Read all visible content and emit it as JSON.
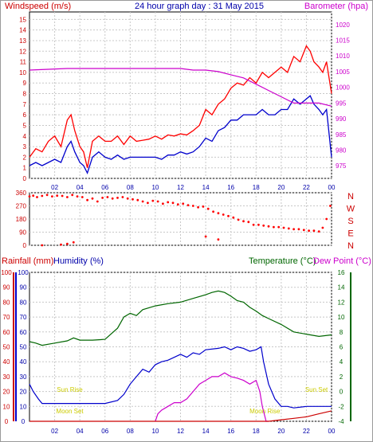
{
  "chart_data": [
    {
      "type": "line",
      "title": "24 hour graph day : 31 May 2015",
      "left_label": "Windspeed (m/s)",
      "right_label": "Barometer (hpa)",
      "x_ticks": [
        "02",
        "04",
        "06",
        "08",
        "10",
        "12",
        "14",
        "16",
        "18",
        "20",
        "22",
        "00"
      ],
      "y_left_ticks": [
        0,
        1,
        2,
        3,
        4,
        5,
        6,
        7,
        8,
        9,
        10,
        11,
        12,
        13,
        14,
        15
      ],
      "y_left_range": [
        0,
        15.7
      ],
      "y_right_ticks": [
        975,
        980,
        985,
        990,
        995,
        1000,
        1005,
        1010,
        1015,
        1020
      ],
      "y_right_range": [
        971,
        1024
      ],
      "colors": {
        "gust": "#ff0000",
        "average": "#0000cc",
        "pressure": "#cc00cc"
      },
      "series": [
        {
          "key": "gust",
          "x": [
            0,
            0.5,
            1,
            1.5,
            2,
            2.5,
            3,
            3.3,
            3.6,
            4,
            4.3,
            4.6,
            5,
            5.5,
            6,
            6.5,
            7,
            7.5,
            8,
            8.5,
            9,
            9.5,
            10,
            10.5,
            11,
            11.5,
            12,
            12.5,
            13,
            13.5,
            14,
            14.5,
            15,
            15.5,
            16,
            16.5,
            17,
            17.5,
            18,
            18.5,
            19,
            19.5,
            20,
            20.5,
            21,
            21.5,
            22,
            22.3,
            22.6,
            23,
            23.3,
            23.6,
            24
          ],
          "y": [
            2.0,
            2.8,
            2.5,
            3.5,
            4.0,
            3.0,
            5.5,
            6.0,
            4.5,
            3.0,
            2.5,
            1.0,
            3.5,
            4.0,
            3.5,
            3.5,
            4.0,
            3.2,
            4.0,
            3.5,
            3.6,
            3.7,
            4.0,
            3.7,
            4.1,
            4.0,
            4.2,
            4.1,
            4.5,
            5.0,
            6.5,
            6.0,
            7.0,
            7.5,
            8.5,
            9.0,
            8.8,
            9.5,
            9.0,
            10.0,
            9.5,
            10.0,
            10.5,
            10.0,
            11.5,
            11.0,
            12.5,
            12.0,
            11.0,
            10.5,
            10.0,
            11.0,
            8.0
          ]
        },
        {
          "key": "average",
          "x": [
            0,
            0.5,
            1,
            1.5,
            2,
            2.5,
            3,
            3.3,
            3.6,
            4,
            4.3,
            4.6,
            5,
            5.5,
            6,
            6.5,
            7,
            7.5,
            8,
            8.5,
            9,
            9.5,
            10,
            10.5,
            11,
            11.5,
            12,
            12.5,
            13,
            13.5,
            14,
            14.5,
            15,
            15.5,
            16,
            16.5,
            17,
            17.5,
            18,
            18.5,
            19,
            19.5,
            20,
            20.5,
            21,
            21.5,
            22,
            22.3,
            22.6,
            23,
            23.3,
            23.6,
            24
          ],
          "y": [
            1.2,
            1.5,
            1.2,
            1.5,
            1.8,
            1.5,
            3.0,
            3.5,
            2.5,
            1.5,
            1.2,
            0.5,
            2.0,
            2.5,
            2.0,
            1.8,
            2.2,
            1.8,
            2.0,
            2.0,
            2.0,
            2.0,
            2.0,
            1.8,
            2.2,
            2.2,
            2.5,
            2.3,
            2.5,
            3.0,
            3.8,
            3.5,
            4.5,
            4.8,
            5.5,
            5.5,
            6.0,
            6.0,
            6.0,
            6.5,
            6.0,
            6.0,
            6.5,
            6.5,
            7.5,
            7.0,
            7.5,
            7.8,
            7.0,
            6.5,
            6.0,
            6.5,
            2.0
          ]
        },
        {
          "key": "pressure",
          "x": [
            0,
            3,
            6,
            9,
            12,
            13,
            14,
            15,
            16,
            17,
            18,
            19,
            20,
            21,
            22,
            23,
            24
          ],
          "y": [
            1005.5,
            1006,
            1006,
            1006,
            1006,
            1005.5,
            1005.5,
            1005,
            1004,
            1003,
            1001,
            999,
            997,
            995,
            995,
            995,
            994
          ]
        }
      ]
    },
    {
      "type": "scatter",
      "x_ticks": [
        "02",
        "04",
        "06",
        "08",
        "10",
        "12",
        "14",
        "16",
        "18",
        "20",
        "22",
        "00"
      ],
      "y_left_ticks": [
        0,
        90,
        180,
        270,
        360
      ],
      "y_range": [
        0,
        360
      ],
      "compass_labels": [
        "N",
        "W",
        "S",
        "E",
        "N"
      ],
      "color": "#ff0000",
      "points_x": [
        0,
        0.3,
        0.6,
        1,
        1.4,
        1.8,
        2.2,
        2.6,
        3,
        3.4,
        3.8,
        4.2,
        4.6,
        5,
        5.4,
        5.8,
        6.2,
        6.6,
        7,
        7.4,
        7.8,
        8.2,
        8.6,
        9,
        9.4,
        9.8,
        10.2,
        10.6,
        11,
        11.4,
        11.8,
        12.2,
        12.6,
        13,
        13.4,
        13.8,
        14.2,
        14.6,
        15,
        15.4,
        15.8,
        16.2,
        16.6,
        17,
        17.4,
        17.8,
        18.2,
        18.6,
        19,
        19.4,
        19.8,
        20.2,
        20.6,
        21,
        21.4,
        21.8,
        22.2,
        22.6,
        23,
        23.3,
        23.6,
        23.9,
        1,
        2.5,
        3,
        3.5,
        14,
        15
      ],
      "points_y": [
        335,
        340,
        330,
        338,
        345,
        335,
        340,
        338,
        330,
        345,
        335,
        330,
        310,
        320,
        300,
        325,
        330,
        320,
        325,
        330,
        320,
        315,
        310,
        300,
        290,
        305,
        300,
        285,
        295,
        290,
        280,
        285,
        275,
        270,
        260,
        265,
        250,
        230,
        220,
        210,
        200,
        190,
        175,
        165,
        160,
        140,
        140,
        135,
        130,
        125,
        125,
        120,
        115,
        110,
        110,
        105,
        100,
        100,
        95,
        120,
        180,
        270,
        0,
        5,
        10,
        20,
        60,
        40
      ]
    },
    {
      "type": "line",
      "left_labels": [
        "Rainfall (mm)",
        "Humidity (%)"
      ],
      "right_labels": [
        "Temperature (°C)",
        "Dew Point (°C)"
      ],
      "x_ticks": [
        "02",
        "04",
        "06",
        "08",
        "10",
        "12",
        "14",
        "16",
        "18",
        "20",
        "22",
        "00"
      ],
      "y_left_ticks": [
        0,
        10,
        20,
        30,
        40,
        50,
        60,
        70,
        80,
        90,
        100
      ],
      "y_right_ticks": [
        -4,
        -2,
        0,
        2,
        4,
        6,
        8,
        10,
        12,
        14,
        16
      ],
      "y_right_range": [
        -4,
        16
      ],
      "annotations": [
        {
          "text": "Sun Rise",
          "x": 3.2,
          "y": 21.5
        },
        {
          "text": "Moon Set",
          "x": 3.2,
          "y": 7
        },
        {
          "text": "Moon Rise",
          "x": 18.7,
          "y": 7
        },
        {
          "text": "Sun Set",
          "x": 22.8,
          "y": 21.5
        }
      ],
      "colors": {
        "rain": "#cc0000",
        "humidity": "#0000cc",
        "temperature": "#006600",
        "dewpoint": "#cc00cc"
      },
      "series": [
        {
          "key": "humidity",
          "axis": "left",
          "x": [
            0,
            0.3,
            0.7,
            1,
            5,
            6,
            7,
            7.5,
            8,
            8.5,
            9,
            9.5,
            10,
            10.5,
            11,
            12,
            12.5,
            13,
            13.5,
            14,
            15,
            15.5,
            16,
            16.5,
            17,
            17.5,
            18,
            18.4,
            18.6,
            19,
            19.5,
            20,
            20.5,
            21,
            22,
            23,
            24
          ],
          "y": [
            25,
            20,
            15,
            12,
            12,
            12,
            14,
            18,
            25,
            30,
            35,
            33,
            38,
            40,
            41,
            45,
            43,
            46,
            45,
            48,
            49,
            50,
            48,
            50,
            49,
            47,
            48,
            50,
            40,
            25,
            15,
            10,
            10,
            9,
            10,
            10,
            10
          ]
        },
        {
          "key": "temperature",
          "axis": "right",
          "x": [
            0,
            0.5,
            1,
            2,
            3,
            3.5,
            4,
            5,
            6,
            7,
            7.5,
            8,
            8.5,
            9,
            10,
            11,
            12,
            13,
            14,
            14.5,
            15,
            15.5,
            16,
            16.5,
            17,
            17.5,
            18,
            18.5,
            19,
            20,
            21,
            22,
            23,
            24
          ],
          "y": [
            6.7,
            6.5,
            6.2,
            6.5,
            6.8,
            7.2,
            6.9,
            6.9,
            7.0,
            8.5,
            10,
            10.5,
            10.2,
            11,
            11.5,
            11.8,
            12,
            12.5,
            13,
            13.3,
            13.5,
            13.3,
            12.8,
            12.2,
            12,
            11.3,
            10.8,
            10.2,
            9.8,
            9.0,
            8.0,
            7.7,
            7.4,
            7.6
          ]
        },
        {
          "key": "dewpoint",
          "axis": "right",
          "x": [
            10,
            10.2,
            10.5,
            11,
            11.5,
            12,
            12.5,
            13,
            13.5,
            14,
            14.5,
            15,
            15.5,
            16,
            16.5,
            17,
            17.5,
            18,
            18.3,
            18.5,
            18.8,
            19
          ],
          "y": [
            -4,
            -3,
            -2.5,
            -2,
            -1.5,
            -1.5,
            -1,
            0,
            1,
            1.5,
            2,
            2,
            2.5,
            2,
            1.8,
            1.5,
            1,
            1.5,
            0,
            -2,
            -4,
            -4
          ]
        },
        {
          "key": "rain",
          "axis": "left",
          "x": [
            0,
            19,
            20,
            21,
            22,
            23,
            24
          ],
          "y": [
            0,
            0,
            1,
            2,
            3,
            5,
            7
          ]
        }
      ]
    }
  ]
}
